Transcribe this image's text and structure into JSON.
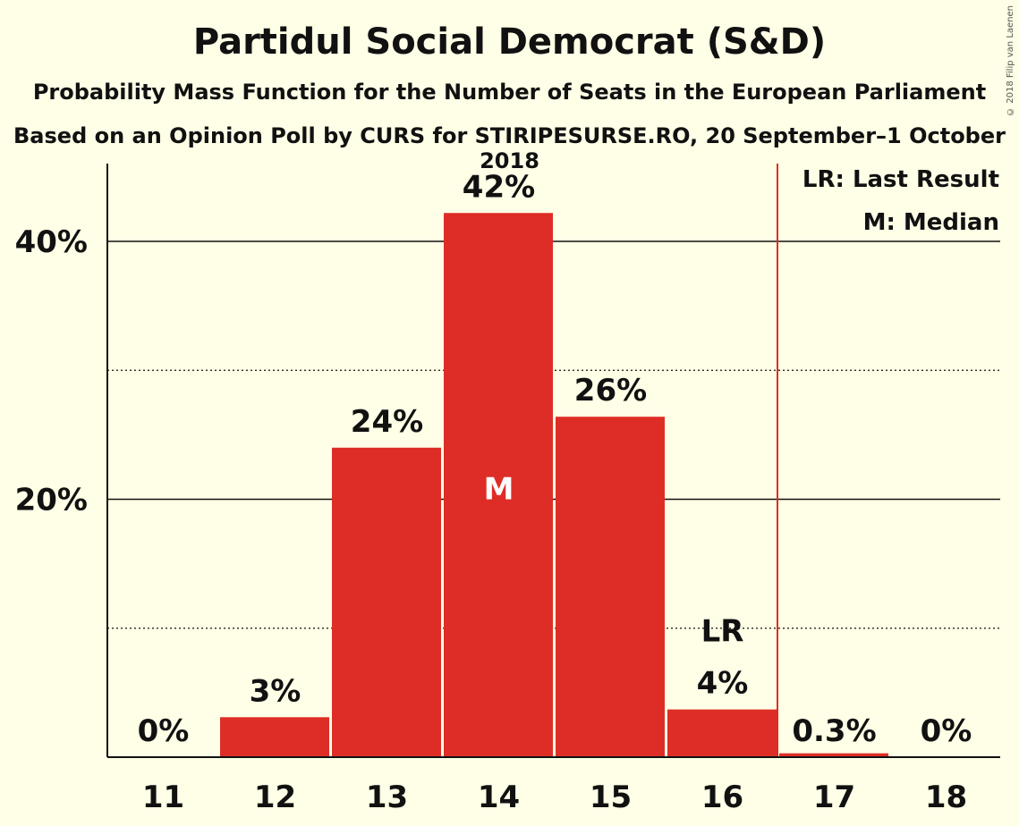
{
  "chart_data": {
    "type": "bar",
    "title": "Partidul Social Democrat (S&D)",
    "subtitle": "Probability Mass Function for the Number of Seats in the European Parliament",
    "subtitle2": "Based on an Opinion Poll by CURS for STIRIPESURSE.RO, 20 September–1 October 2018",
    "copyright": "© 2018 Filip van Laenen",
    "categories": [
      "11",
      "12",
      "13",
      "14",
      "15",
      "16",
      "17",
      "18"
    ],
    "values": [
      0,
      3.1,
      24.0,
      42.2,
      26.4,
      3.7,
      0.3,
      0
    ],
    "value_labels": [
      "0%",
      "3%",
      "24%",
      "42%",
      "26%",
      "4%",
      "0.3%",
      "0%"
    ],
    "ylim": [
      0,
      46
    ],
    "yticks": [
      {
        "value": 20,
        "label": "20%"
      },
      {
        "value": 40,
        "label": "40%"
      }
    ],
    "minor_grid": [
      10,
      30
    ],
    "bar_color": "#DE2D26",
    "median_category": "14",
    "median_marker": "M",
    "last_result_category": "16",
    "last_result_marker": "LR",
    "last_result_line_between": [
      "16",
      "17"
    ],
    "legend": {
      "position": "top-right",
      "items": [
        "LR: Last Result",
        "M: Median"
      ]
    }
  }
}
